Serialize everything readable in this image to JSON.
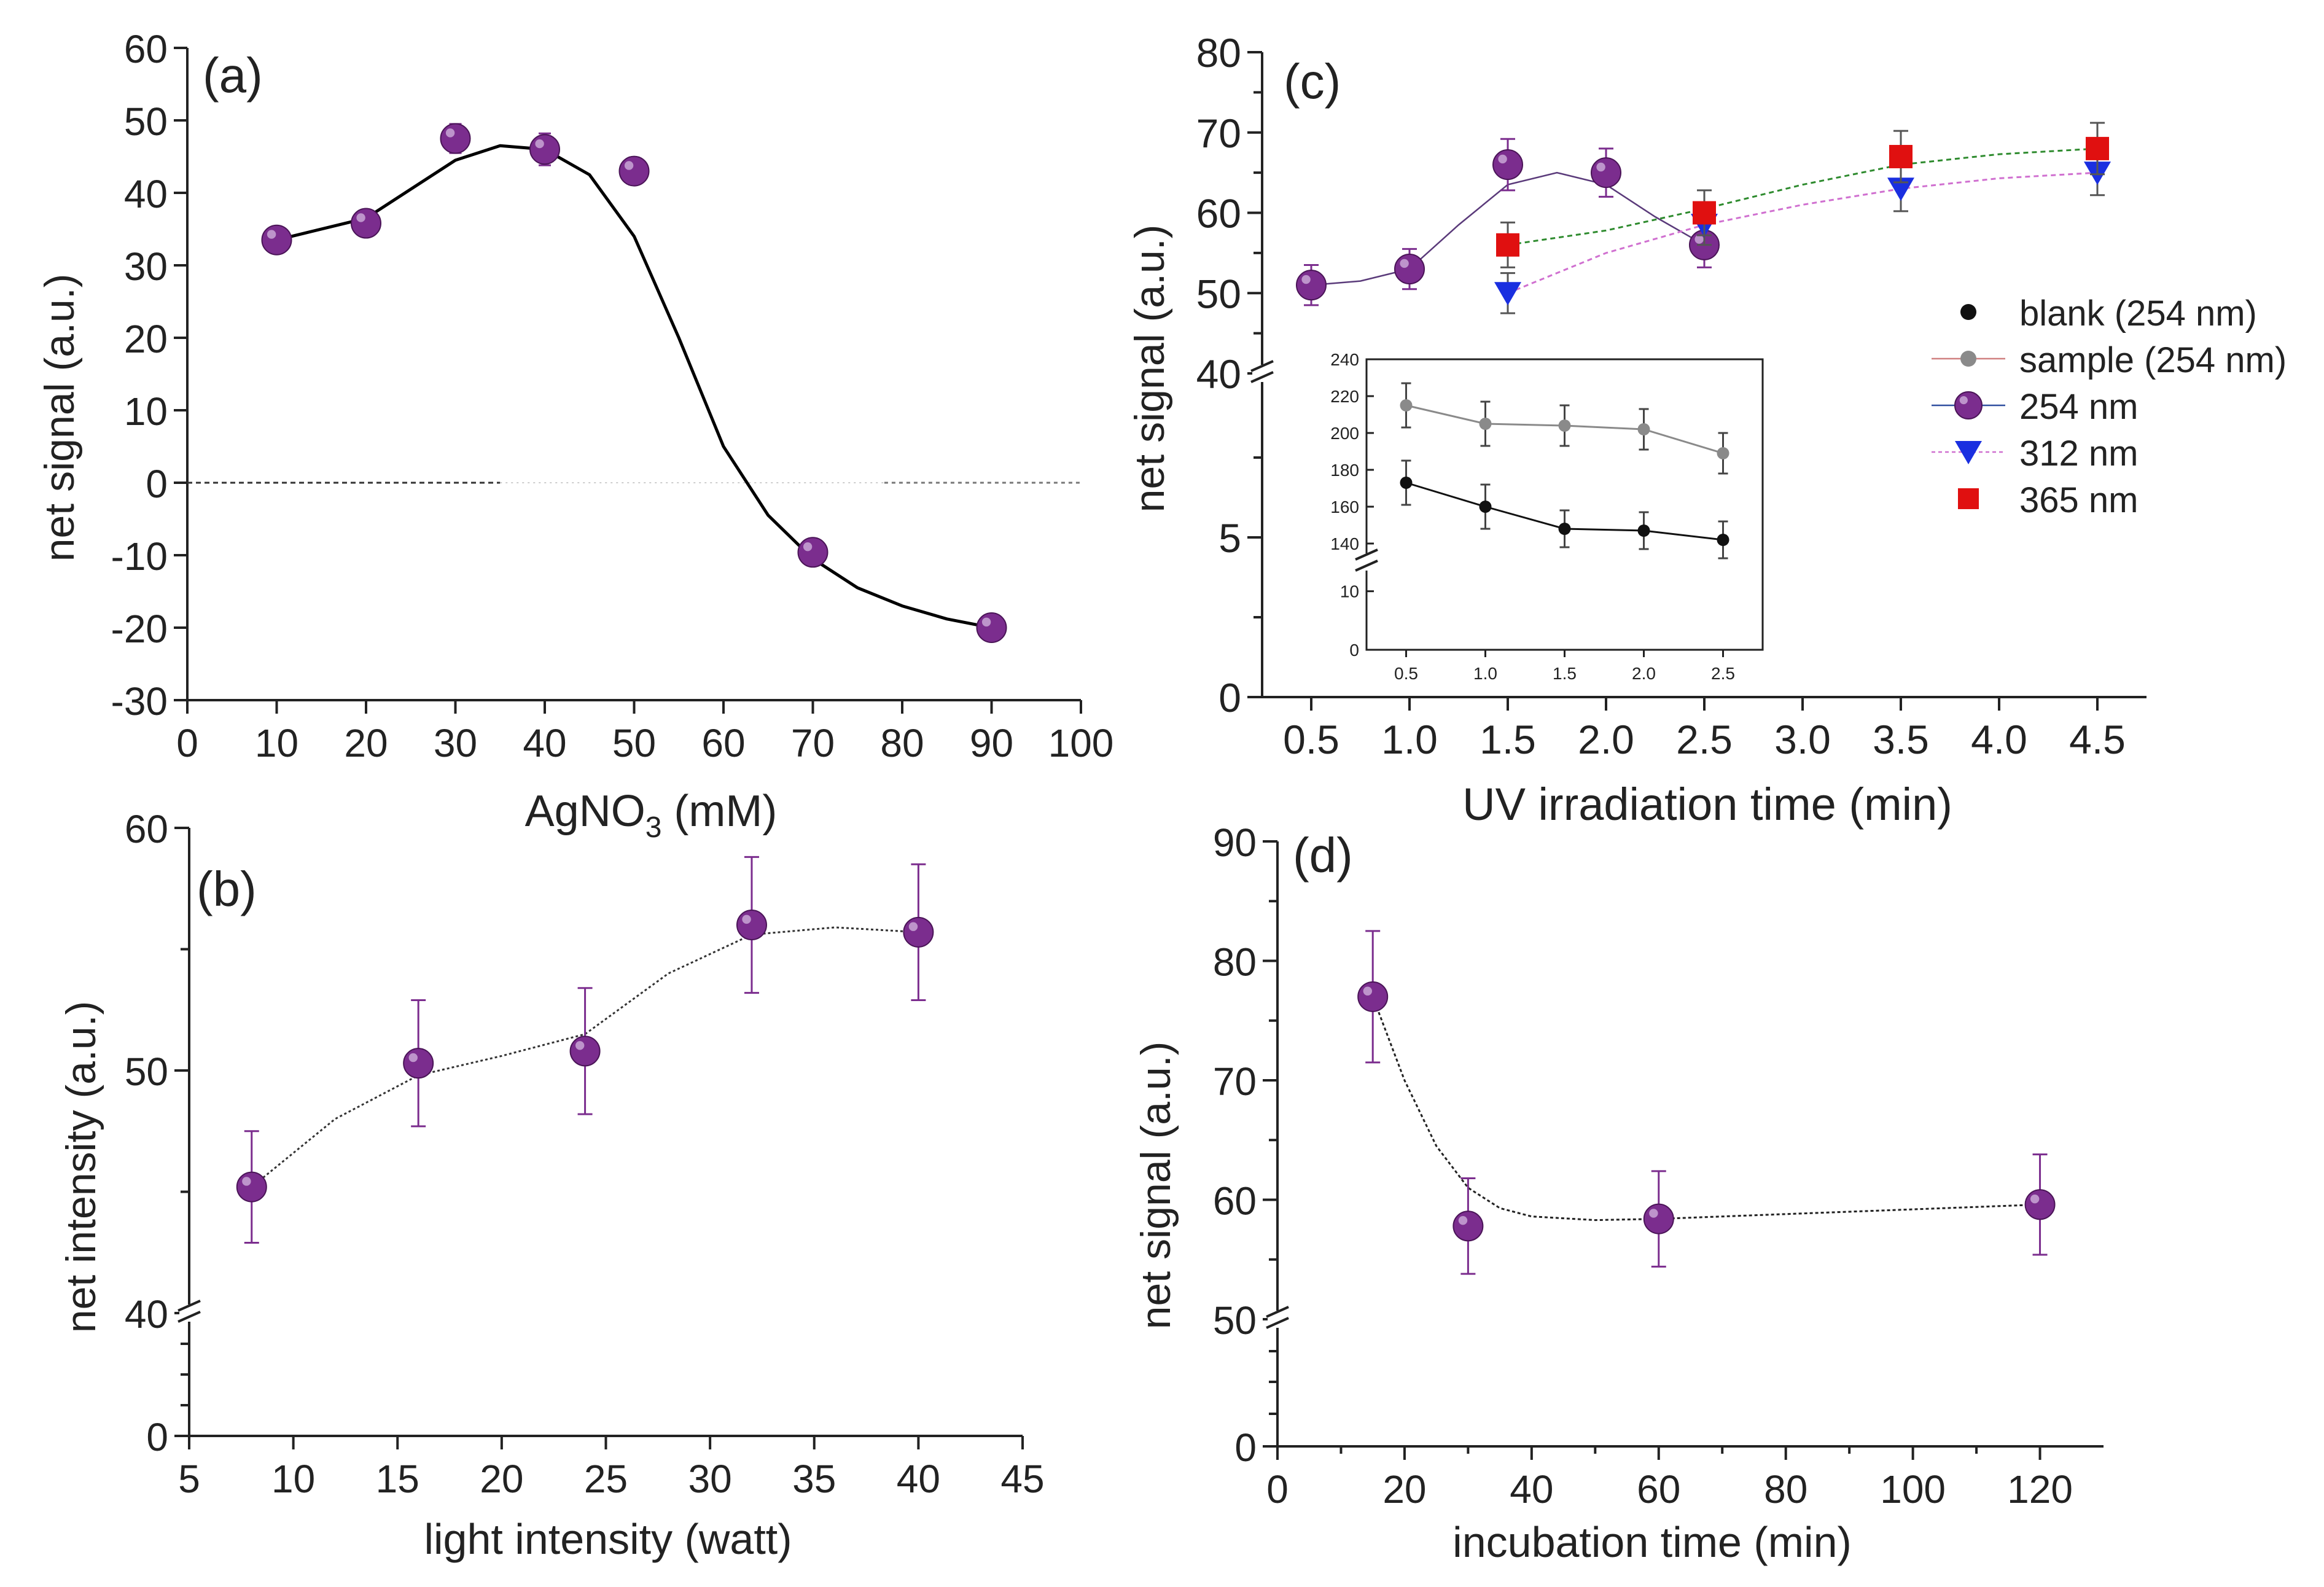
{
  "colors": {
    "axis": "#222222",
    "purple": "#7b2d8e",
    "purple_light": "#c9a7d6",
    "black": "#111111",
    "gray": "#8a8a8a",
    "blue": "#1a2fe0",
    "red": "#e01010",
    "fit": "#000000",
    "green_fit": "#2e8b2e",
    "pink_fit": "#d070d0"
  },
  "chart_data": [
    {
      "id": "a",
      "type": "scatter",
      "panel_label": "(a)",
      "xlabel_main": "AgNO",
      "xlabel_sub": "3",
      "xlabel_rest": " (mM)",
      "ylabel": "net signal (a.u.)",
      "xlim": [
        0,
        100
      ],
      "ylim": [
        -30,
        60
      ],
      "xticks": [
        0,
        10,
        20,
        30,
        40,
        50,
        60,
        70,
        80,
        90,
        100
      ],
      "xtick_labels": [
        "0",
        "10",
        "20",
        "30",
        "40",
        "50",
        "60",
        "70",
        "80",
        "90",
        "100"
      ],
      "yticks": [
        -30,
        -20,
        -10,
        0,
        10,
        20,
        30,
        40,
        50,
        60
      ],
      "ytick_labels": [
        "-30",
        "-20",
        "-10",
        "0",
        "10",
        "20",
        "30",
        "40",
        "50",
        "60"
      ],
      "zero_line": 0,
      "series": [
        {
          "name": "signal",
          "x": [
            10,
            20,
            30,
            40,
            50,
            70,
            90
          ],
          "y": [
            33.5,
            35.8,
            47.5,
            46.0,
            43.0,
            -9.6,
            -20.0
          ],
          "err": [
            1.5,
            1.5,
            2.0,
            2.2,
            1.8,
            1.5,
            1.8
          ],
          "fit_x": [
            10,
            20,
            30,
            35,
            40,
            45,
            50,
            55,
            60,
            65,
            70,
            75,
            80,
            85,
            90
          ],
          "fit_y": [
            33.5,
            36.5,
            44.5,
            46.5,
            46.0,
            42.5,
            34.0,
            20.0,
            5.0,
            -4.5,
            -10.5,
            -14.5,
            -17.0,
            -18.8,
            -20.0
          ]
        }
      ]
    },
    {
      "id": "b",
      "type": "scatter",
      "panel_label": "(b)",
      "xlabel": "light intensity (watt)",
      "ylabel": "net intensity (a.u.)",
      "xlim": [
        5,
        45
      ],
      "broken_y": true,
      "ylim_lower": [
        0,
        40
      ],
      "ylim_upper": [
        40,
        60
      ],
      "xticks": [
        5,
        10,
        15,
        20,
        25,
        30,
        35,
        40,
        45
      ],
      "xtick_labels": [
        "5",
        "10",
        "15",
        "20",
        "25",
        "30",
        "35",
        "40",
        "45"
      ],
      "ytick_labels_lower": [
        "0"
      ],
      "ytick_labels_upper": [
        "40",
        "50",
        "60"
      ],
      "series": [
        {
          "name": "intensity",
          "x": [
            8,
            16,
            24,
            32,
            40
          ],
          "y": [
            45.2,
            50.3,
            50.8,
            56.0,
            55.7
          ],
          "err": [
            2.3,
            2.6,
            2.6,
            2.8,
            2.8
          ],
          "fit_x": [
            8,
            12,
            16,
            20,
            24,
            28,
            32,
            36,
            40
          ],
          "fit_y": [
            45.2,
            48.0,
            49.8,
            50.6,
            51.5,
            54.0,
            55.6,
            55.9,
            55.7
          ]
        }
      ]
    },
    {
      "id": "c",
      "type": "scatter",
      "panel_label": "(c)",
      "xlabel": "UV irradiation time (min)",
      "ylabel": "net signal (a.u.)",
      "xlim": [
        0.25,
        4.75
      ],
      "broken_y": true,
      "ylim_upper": [
        40,
        80
      ],
      "xticks": [
        0.5,
        1.0,
        1.5,
        2.0,
        2.5,
        3.0,
        3.5,
        4.0,
        4.5
      ],
      "xtick_labels": [
        "0.5",
        "1.0",
        "1.5",
        "2.0",
        "2.5",
        "3.0",
        "3.5",
        "4.0",
        "4.5"
      ],
      "ytick_labels_lower": [
        "0",
        "5"
      ],
      "ytick_labels_upper": [
        "40",
        "50",
        "60",
        "70",
        "80"
      ],
      "legend": [
        "blank (254 nm)",
        "sample (254 nm)",
        "254 nm",
        "312 nm",
        "365 nm"
      ],
      "series": [
        {
          "name": "254 nm",
          "x": [
            0.5,
            1.0,
            1.5,
            2.0,
            2.5
          ],
          "y": [
            51.0,
            53.0,
            66.0,
            65.0,
            56.0
          ],
          "err": [
            2.5,
            2.5,
            3.2,
            3.0,
            2.8
          ],
          "fit_x": [
            0.5,
            0.75,
            1.0,
            1.25,
            1.5,
            1.75,
            2.0,
            2.25,
            2.5
          ],
          "fit_y": [
            51.0,
            51.5,
            53.0,
            58.5,
            63.5,
            65.0,
            63.5,
            59.5,
            56.0
          ]
        },
        {
          "name": "312 nm",
          "x": [
            1.5,
            2.5,
            3.5,
            4.5
          ],
          "y": [
            50.0,
            58.5,
            63.0,
            65.0
          ],
          "err": [
            2.5,
            2.5,
            2.8,
            2.8
          ],
          "fit_x": [
            1.5,
            2.0,
            2.5,
            3.0,
            3.5,
            4.0,
            4.5
          ],
          "fit_y": [
            50.0,
            55.0,
            58.5,
            61.0,
            63.0,
            64.3,
            65.0
          ]
        },
        {
          "name": "365 nm",
          "x": [
            1.5,
            2.5,
            3.5,
            4.5
          ],
          "y": [
            56.0,
            60.0,
            67.0,
            68.0
          ],
          "err": [
            2.8,
            2.8,
            3.2,
            3.2
          ],
          "fit_x": [
            1.5,
            2.0,
            2.5,
            3.0,
            3.5,
            4.0,
            4.5
          ],
          "fit_y": [
            56.0,
            57.8,
            60.5,
            63.5,
            66.0,
            67.3,
            68.0
          ]
        }
      ],
      "inset": {
        "xlim": [
          0.25,
          2.75
        ],
        "xticks": [
          0.5,
          1.0,
          1.5,
          2.0,
          2.5
        ],
        "xtick_labels": [
          "0.5",
          "1.0",
          "1.5",
          "2.0",
          "2.5"
        ],
        "ylim_upper": [
          130,
          240
        ],
        "ylim_lower": [
          0,
          15
        ],
        "ytick_labels_upper": [
          "140",
          "160",
          "180",
          "200",
          "220",
          "240"
        ],
        "ytick_labels_lower": [
          "0",
          "10"
        ],
        "series": [
          {
            "name": "blank (254 nm)",
            "x": [
              0.5,
              1.0,
              1.5,
              2.0,
              2.5
            ],
            "y": [
              173,
              160,
              148,
              147,
              142
            ],
            "err": [
              12,
              12,
              10,
              10,
              10
            ]
          },
          {
            "name": "sample (254 nm)",
            "x": [
              0.5,
              1.0,
              1.5,
              2.0,
              2.5
            ],
            "y": [
              215,
              205,
              204,
              202,
              189
            ],
            "err": [
              12,
              12,
              11,
              11,
              11
            ]
          }
        ]
      }
    },
    {
      "id": "d",
      "type": "scatter",
      "panel_label": "(d)",
      "xlabel": "incubation time (min)",
      "ylabel": "net signal (a.u.)",
      "xlim": [
        0,
        130
      ],
      "broken_y": true,
      "ylim_upper": [
        50,
        90
      ],
      "xticks": [
        0,
        20,
        40,
        60,
        80,
        100,
        120
      ],
      "xtick_labels": [
        "0",
        "20",
        "40",
        "60",
        "80",
        "100",
        "120"
      ],
      "ytick_labels_lower": [
        "0"
      ],
      "ytick_labels_upper": [
        "50",
        "60",
        "70",
        "80",
        "90"
      ],
      "series": [
        {
          "name": "signal",
          "x": [
            15,
            30,
            60,
            120
          ],
          "y": [
            77.0,
            57.8,
            58.4,
            59.6
          ],
          "err": [
            5.5,
            4.0,
            4.0,
            4.2
          ],
          "fit_x": [
            15,
            20,
            25,
            30,
            35,
            40,
            50,
            60,
            80,
            100,
            120
          ],
          "fit_y": [
            77.0,
            70.0,
            64.5,
            61.0,
            59.3,
            58.6,
            58.3,
            58.4,
            58.8,
            59.2,
            59.6
          ]
        }
      ]
    }
  ]
}
